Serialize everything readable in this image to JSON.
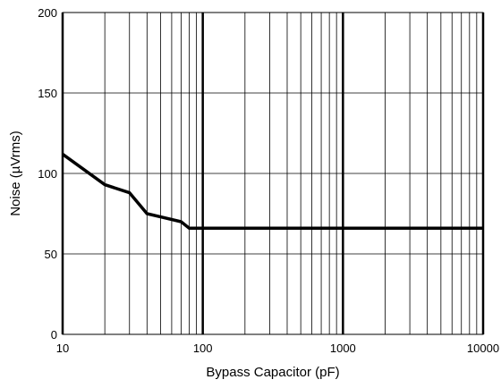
{
  "chart_data": {
    "type": "line",
    "xlabel": "Bypass Capacitor (pF)",
    "ylabel": "Noise (µVrms)",
    "x_scale": "log",
    "xlim": [
      10,
      10000
    ],
    "ylim": [
      0,
      200
    ],
    "x_ticks": [
      10,
      100,
      1000,
      10000
    ],
    "x_tick_labels": [
      "10",
      "100",
      "1000",
      "10000"
    ],
    "y_ticks": [
      0,
      50,
      100,
      150,
      200
    ],
    "y_tick_labels": [
      "0",
      "50",
      "100",
      "150",
      "200"
    ],
    "grid": true,
    "line_color": "#000000",
    "series": [
      {
        "x": [
          10,
          20,
          30,
          40,
          50,
          70,
          80,
          100,
          1000,
          10000
        ],
        "y": [
          112,
          93,
          88,
          75,
          73,
          70,
          66,
          66,
          66,
          66
        ]
      }
    ]
  }
}
